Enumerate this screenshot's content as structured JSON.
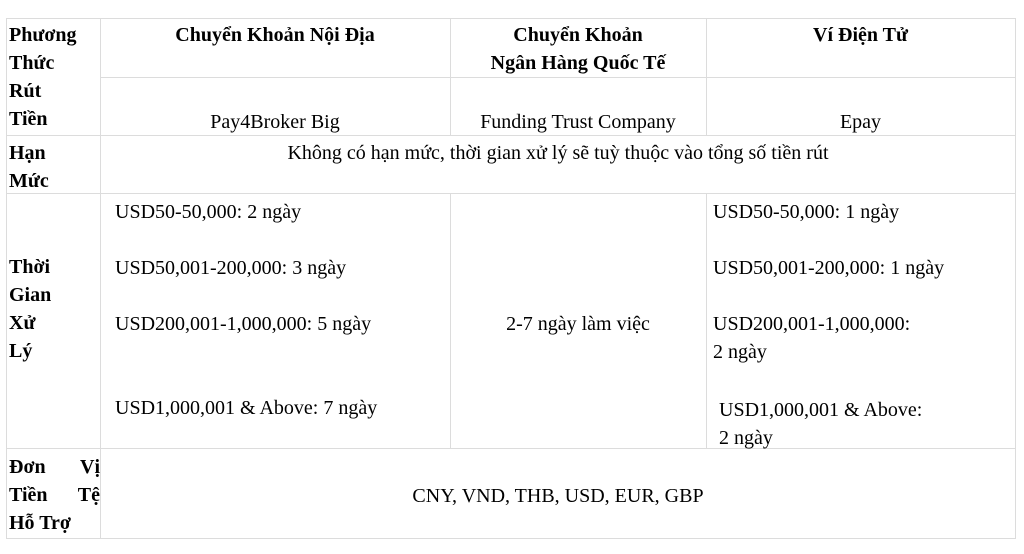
{
  "table": {
    "row_header": {
      "label_lines": [
        "Phương",
        "Thức",
        "Rút",
        "Tiền"
      ],
      "columns": [
        "Chuyển Khoản Nội Địa",
        "Chuyển Khoản\nNgân Hàng Quốc Tế",
        "Ví Điện Tử"
      ],
      "column_lines": [
        [
          "Chuyển Khoản Nội Địa"
        ],
        [
          "Chuyển Khoản",
          "Ngân Hàng Quốc Tế"
        ],
        [
          "Ví Điện Tử"
        ]
      ],
      "providers": [
        "Pay4Broker Big",
        "Funding Trust Company",
        "Epay"
      ]
    },
    "row_limit": {
      "label_lines": [
        "Hạn",
        "Mức"
      ],
      "value": "Không có hạn mức, thời gian xử lý sẽ tuỳ thuộc vào tổng số tiền rút"
    },
    "row_time": {
      "label_lines": [
        "Thời",
        "Gian",
        "Xử",
        "Lý"
      ],
      "domestic": [
        "USD50-50,000: 2 ngày",
        "USD50,001-200,000: 3 ngày",
        "USD200,001-1,000,000: 5 ngày",
        "USD1,000,001 & Above: 7 ngày"
      ],
      "international": "2-7 ngày làm việc",
      "ewallet": [
        "USD50-50,000: 1 ngày",
        "USD50,001-200,000: 1 ngày",
        "USD200,001-1,000,000:",
        "2 ngày",
        "USD1,000,001 & Above:",
        "2 ngày"
      ]
    },
    "row_currency": {
      "label_lines": [
        [
          "Đơn",
          "Vị"
        ],
        [
          "Tiền",
          "Tệ"
        ],
        [
          "Hỗ Trợ"
        ]
      ],
      "value": "CNY, VND, THB, USD, EUR, GBP"
    }
  }
}
